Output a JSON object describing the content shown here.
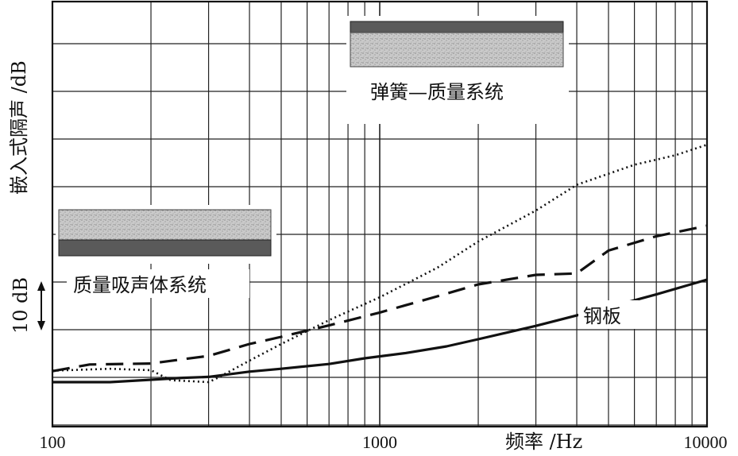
{
  "chart_data": {
    "type": "line",
    "xscale": "log",
    "xlim": [
      100,
      10000
    ],
    "xticks": [
      "100",
      "1000",
      "10000"
    ],
    "xlabel": "频率 /Hz",
    "ylabel": "嵌入式隔声 /dB",
    "scale_note": "10 dB",
    "grid": true,
    "series": [
      {
        "name": "钢板",
        "style": "solid",
        "points": [
          [
            100,
            0
          ],
          [
            150,
            0
          ],
          [
            200,
            0.5
          ],
          [
            250,
            0.9
          ],
          [
            300,
            1.1
          ],
          [
            400,
            2.2
          ],
          [
            500,
            2.8
          ],
          [
            700,
            3.8
          ],
          [
            900,
            5.0
          ],
          [
            1200,
            6.1
          ],
          [
            1600,
            7.5
          ],
          [
            2000,
            9.0
          ],
          [
            3000,
            11.8
          ],
          [
            5000,
            15.7
          ],
          [
            7000,
            18.4
          ],
          [
            10000,
            21.5
          ]
        ]
      },
      {
        "name": "质量吸声体系统",
        "style": "dashed",
        "points": [
          [
            100,
            2.3
          ],
          [
            130,
            3.7
          ],
          [
            200,
            3.9
          ],
          [
            250,
            4.8
          ],
          [
            300,
            5.5
          ],
          [
            400,
            8.0
          ],
          [
            500,
            9.5
          ],
          [
            700,
            11.9
          ],
          [
            1000,
            14.6
          ],
          [
            1500,
            18.0
          ],
          [
            2000,
            20.5
          ],
          [
            3000,
            22.5
          ],
          [
            4000,
            22.8
          ],
          [
            5000,
            27.6
          ],
          [
            7000,
            30.6
          ],
          [
            10000,
            32.8
          ]
        ]
      },
      {
        "name": "弹簧—质量系统",
        "style": "dotted",
        "points": [
          [
            100,
            2.4
          ],
          [
            150,
            2.8
          ],
          [
            200,
            2.5
          ],
          [
            230,
            0.4
          ],
          [
            300,
            0.0
          ],
          [
            320,
            0.9
          ],
          [
            400,
            4.5
          ],
          [
            500,
            8.0
          ],
          [
            700,
            13.0
          ],
          [
            1000,
            17.8
          ],
          [
            1500,
            24.0
          ],
          [
            2000,
            29.5
          ],
          [
            3000,
            36.0
          ],
          [
            4000,
            41.4
          ],
          [
            6000,
            45.6
          ],
          [
            8000,
            47.6
          ],
          [
            10000,
            49.8
          ]
        ]
      }
    ],
    "annotations": [
      "弹簧—质量系统",
      "质量吸声体系统",
      "钢板"
    ]
  }
}
